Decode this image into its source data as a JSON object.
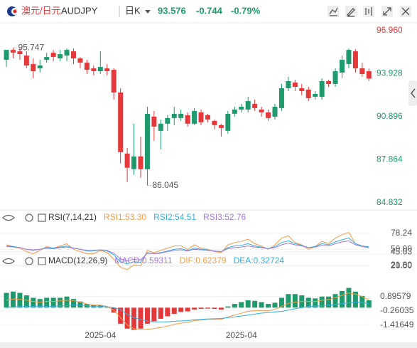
{
  "header": {
    "pair": "澳元/日元",
    "symbol": "AUDJPY",
    "period": "日K",
    "price": "93.576",
    "change": "-0.744",
    "change_pct": "-0.79%"
  },
  "chart_data": [
    {
      "type": "candlestick",
      "categories": [
        null,
        null,
        null,
        null,
        null,
        null,
        null,
        null,
        null,
        null,
        null,
        null,
        null,
        null,
        "2025-04",
        null,
        null,
        null,
        null,
        null,
        null,
        null,
        null,
        null,
        null,
        null,
        null,
        null,
        null,
        null,
        null,
        null,
        null,
        null,
        null,
        "2025-04",
        null,
        null,
        null,
        null,
        null,
        null,
        null,
        null,
        null,
        null,
        null,
        null,
        null,
        null,
        null,
        null,
        null,
        null,
        null
      ],
      "ohlc": [
        [
          94.9,
          95.6,
          94.4,
          95.6
        ],
        [
          95.6,
          95.747,
          95.0,
          95.4
        ],
        [
          95.5,
          95.7,
          94.9,
          95.3
        ],
        [
          95.2,
          95.5,
          94.3,
          94.5
        ],
        [
          94.6,
          95.0,
          93.6,
          94.1
        ],
        [
          94.3,
          94.9,
          94.0,
          94.5
        ],
        [
          94.9,
          95.4,
          94.7,
          95.1
        ],
        [
          95.4,
          95.6,
          94.8,
          95.1
        ],
        [
          95.0,
          95.6,
          94.8,
          95.3
        ],
        [
          95.2,
          95.7,
          94.8,
          95.6
        ],
        [
          95.5,
          95.7,
          94.6,
          95.0
        ],
        [
          95.0,
          95.1,
          94.3,
          94.7
        ],
        [
          94.7,
          94.9,
          93.9,
          94.2
        ],
        [
          94.3,
          94.5,
          93.8,
          94.1
        ],
        [
          94.1,
          95.5,
          93.9,
          94.4
        ],
        [
          94.3,
          94.6,
          93.8,
          94.1
        ],
        [
          94.2,
          94.3,
          92.1,
          92.6
        ],
        [
          92.6,
          92.9,
          87.6,
          88.4
        ],
        [
          88.3,
          88.7,
          86.3,
          87.3
        ],
        [
          87.2,
          90.4,
          86.8,
          88.1
        ],
        [
          88.1,
          89.5,
          86.6,
          87.2
        ],
        [
          87.2,
          91.6,
          86.045,
          91.1
        ],
        [
          90.9,
          91.3,
          89.2,
          90.2
        ],
        [
          89.9,
          90.7,
          88.6,
          90.4
        ],
        [
          90.4,
          91.0,
          89.9,
          90.8
        ],
        [
          90.8,
          91.6,
          90.3,
          91.1
        ],
        [
          90.8,
          91.4,
          90.6,
          91.1
        ],
        [
          91.0,
          91.2,
          90.2,
          90.4
        ],
        [
          90.4,
          91.5,
          90.3,
          91.3
        ],
        [
          91.2,
          91.4,
          90.3,
          90.5
        ],
        [
          91.0,
          91.1,
          90.5,
          90.7
        ],
        [
          90.6,
          90.7,
          90.0,
          90.3
        ],
        [
          90.3,
          90.4,
          89.5,
          90.1
        ],
        [
          89.9,
          91.3,
          89.7,
          91.1
        ],
        [
          91.1,
          91.6,
          90.9,
          91.4
        ],
        [
          91.4,
          91.8,
          91.2,
          91.6
        ],
        [
          91.4,
          92.3,
          91.2,
          92.0
        ],
        [
          91.8,
          92.1,
          91.3,
          91.5
        ],
        [
          91.4,
          91.6,
          90.9,
          91.2
        ],
        [
          91.2,
          91.4,
          90.6,
          90.8
        ],
        [
          90.9,
          91.8,
          90.7,
          91.6
        ],
        [
          91.5,
          93.2,
          91.3,
          92.9
        ],
        [
          92.9,
          93.7,
          92.7,
          93.4
        ],
        [
          93.3,
          93.5,
          92.7,
          93.0
        ],
        [
          92.9,
          93.2,
          92.4,
          92.7
        ],
        [
          92.8,
          93.0,
          92.0,
          92.2
        ],
        [
          92.3,
          92.7,
          92.1,
          92.5
        ],
        [
          92.3,
          93.6,
          92.1,
          93.4
        ],
        [
          93.4,
          93.5,
          93.0,
          93.2
        ],
        [
          93.2,
          94.3,
          93.0,
          94.1
        ],
        [
          94.0,
          95.2,
          93.6,
          94.9
        ],
        [
          94.6,
          95.7,
          94.3,
          95.6
        ],
        [
          95.5,
          95.65,
          94.0,
          94.3
        ],
        [
          94.3,
          94.7,
          93.7,
          93.9
        ],
        [
          94.1,
          94.3,
          93.4,
          93.576
        ]
      ],
      "colors": {
        "up": "#1f9a6c",
        "down": "#e5383b"
      },
      "ylim": [
        84.48,
        97.46
      ],
      "yticks": [
        {
          "value": 96.96,
          "label": "96.960",
          "color": "#e5383b"
        },
        {
          "value": 93.928,
          "label": "93.928",
          "color": "#1f9a6c"
        },
        {
          "value": 90.896,
          "label": "90.896",
          "color": "#1f9a6c"
        },
        {
          "value": 87.864,
          "label": "87.864",
          "color": "#1f9a6c"
        },
        {
          "value": 84.832,
          "label": "84.832",
          "color": "#1f9a6c"
        }
      ],
      "annotations": [
        {
          "label": "95.747",
          "value": 95.747
        },
        {
          "label": "86.045",
          "value": 86.045
        }
      ]
    },
    {
      "type": "line",
      "title": "RSI(7,14,21)",
      "series": [
        {
          "name": "RSI1:53.30",
          "color": "#f39b4a",
          "values": [
            58,
            55,
            52,
            46,
            42,
            48,
            55,
            52,
            56,
            60,
            50,
            46,
            42,
            42,
            48,
            44,
            32,
            18,
            14,
            22,
            20,
            48,
            44,
            48,
            52,
            56,
            56,
            50,
            58,
            52,
            50,
            46,
            44,
            58,
            62,
            64,
            68,
            60,
            56,
            50,
            58,
            70,
            74,
            62,
            58,
            50,
            55,
            64,
            60,
            70,
            76,
            80,
            60,
            55,
            53.3
          ]
        },
        {
          "name": "RSI2:54.51",
          "color": "#35aee0",
          "values": [
            56,
            55,
            53,
            50,
            48,
            50,
            53,
            52,
            54,
            56,
            52,
            50,
            47,
            47,
            49,
            47,
            40,
            28,
            24,
            28,
            27,
            44,
            42,
            44,
            47,
            50,
            51,
            48,
            52,
            50,
            49,
            47,
            46,
            53,
            56,
            57,
            60,
            56,
            54,
            51,
            55,
            62,
            65,
            60,
            57,
            53,
            55,
            60,
            58,
            63,
            67,
            70,
            60,
            56,
            54.51
          ]
        },
        {
          "name": "RSI3:52.76",
          "color": "#a07ad8",
          "values": [
            55,
            54,
            53,
            50,
            49,
            50,
            52,
            51,
            53,
            54,
            52,
            50,
            48,
            48,
            49,
            48,
            43,
            33,
            30,
            32,
            31,
            43,
            42,
            43,
            46,
            48,
            49,
            47,
            50,
            49,
            48,
            47,
            46,
            51,
            53,
            54,
            56,
            54,
            53,
            51,
            53,
            58,
            61,
            58,
            56,
            53,
            54,
            57,
            56,
            60,
            63,
            65,
            58,
            55,
            52.76
          ]
        }
      ],
      "ylim": [
        9.9,
        93.4
      ],
      "yticks": [
        78.24,
        {
          "value": 50,
          "label": "50.00"
        },
        45.03,
        {
          "value": 21.8,
          "label": "21.80"
        },
        {
          "value": 20,
          "label": "20.00"
        }
      ]
    },
    {
      "type": "combo",
      "title": "MACD(12,26,9)",
      "series": [
        {
          "name": "MACD:0.59311",
          "type": "bar",
          "color": "#a07ad8",
          "up_color": "#1f9a6c",
          "down_color": "#e5383b",
          "values": [
            1.2,
            1.3,
            1.2,
            1.0,
            0.8,
            0.7,
            0.8,
            0.8,
            0.8,
            0.9,
            0.7,
            0.5,
            0.3,
            0.2,
            0.2,
            0.05,
            -0.4,
            -1.3,
            -1.7,
            -1.8,
            -1.7,
            -1.3,
            -1.1,
            -0.9,
            -0.7,
            -0.5,
            -0.35,
            -0.3,
            -0.15,
            -0.1,
            -0.08,
            -0.1,
            -0.15,
            0.1,
            0.3,
            0.45,
            0.6,
            0.55,
            0.45,
            0.3,
            0.4,
            0.8,
            1.1,
            1.1,
            1.0,
            0.8,
            0.75,
            0.9,
            0.9,
            1.1,
            1.35,
            1.6,
            1.3,
            0.95,
            0.59311
          ]
        },
        {
          "name": "DIF:0.62379",
          "type": "line",
          "color": "#f39b4a",
          "values": [
            0.6,
            0.7,
            0.7,
            0.6,
            0.5,
            0.45,
            0.5,
            0.5,
            0.55,
            0.6,
            0.55,
            0.45,
            0.3,
            0.2,
            0.2,
            0.1,
            -0.2,
            -0.8,
            -1.4,
            -1.7,
            -1.8,
            -1.75,
            -1.7,
            -1.6,
            -1.5,
            -1.35,
            -1.25,
            -1.2,
            -1.05,
            -1.0,
            -0.95,
            -0.95,
            -0.95,
            -0.75,
            -0.6,
            -0.45,
            -0.3,
            -0.25,
            -0.22,
            -0.25,
            -0.15,
            0.1,
            0.35,
            0.45,
            0.5,
            0.5,
            0.5,
            0.6,
            0.65,
            0.8,
            1.0,
            1.2,
            1.1,
            0.9,
            0.62379
          ]
        },
        {
          "name": "DEA:0.32724",
          "type": "line",
          "color": "#35aee0",
          "values": [
            0.0,
            0.05,
            0.1,
            0.1,
            0.1,
            0.1,
            0.1,
            0.1,
            0.15,
            0.15,
            0.2,
            0.2,
            0.15,
            0.1,
            0.1,
            0.075,
            0.0,
            -0.15,
            -0.55,
            -0.8,
            -0.95,
            -1.1,
            -1.15,
            -1.15,
            -1.15,
            -1.1,
            -1.075,
            -1.05,
            -0.975,
            -0.95,
            -0.91,
            -0.9,
            -0.875,
            -0.8,
            -0.75,
            -0.675,
            -0.6,
            -0.525,
            -0.445,
            -0.4,
            -0.35,
            -0.3,
            -0.2,
            -0.1,
            0.0,
            0.1,
            0.125,
            0.15,
            0.2,
            0.25,
            0.325,
            0.4,
            0.45,
            0.425,
            0.32724
          ]
        }
      ],
      "ylim": [
        -2.0,
        2.9
      ],
      "yticks": [
        0.89579,
        -0.26035,
        -1.41649
      ]
    }
  ]
}
